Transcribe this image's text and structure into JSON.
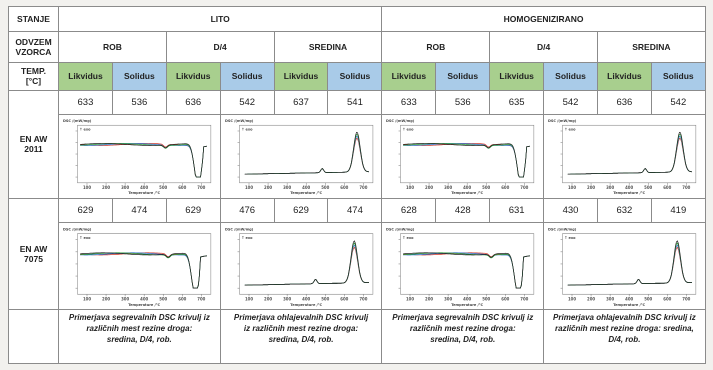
{
  "header": {
    "stanje_label": "STANJE",
    "lito": "LITO",
    "homog": "HOMOGENIZIRANO",
    "odvzem_label_l1": "ODVZEM",
    "odvzem_label_l2": "VZORCA",
    "rob": "ROB",
    "d4": "D/4",
    "sredina": "SREDINA",
    "temp_label_l1": "TEMP.",
    "temp_label_l2": "[°C]",
    "likvidus": "Likvidus",
    "solidus": "Solidus"
  },
  "colors": {
    "likvidus_bg": "#a8cf8e",
    "solidus_bg": "#a9cbe8"
  },
  "rows": [
    {
      "label_l1": "EN AW",
      "label_l2": "2011",
      "values": [
        "633",
        "536",
        "636",
        "542",
        "637",
        "541",
        "633",
        "536",
        "635",
        "542",
        "636",
        "542"
      ]
    },
    {
      "label_l1": "EN AW",
      "label_l2": "7075",
      "values": [
        "629",
        "474",
        "629",
        "476",
        "629",
        "474",
        "628",
        "428",
        "631",
        "430",
        "632",
        "419"
      ]
    }
  ],
  "plot_text": {
    "ylabel": "DSC /(mW/mg)",
    "unit": "↑ exo",
    "xlabel": "Temperature /°C",
    "ticks": [
      "100",
      "200",
      "300",
      "400",
      "500",
      "600",
      "700"
    ]
  },
  "captions": {
    "lito_seg_l1": "Primerjava segrevalnih DSC krivulj iz",
    "lito_seg_l2": "različnih mest rezine droga:",
    "lito_seg_l3": "sredina, D/4, rob.",
    "lito_ohl_l1": "Primerjava ohlajevalnih DSC krivulj",
    "lito_ohl_l2": "iz različnih mest rezine droga:",
    "lito_ohl_l3": "sredina, D/4, rob.",
    "hom_seg_l1": "Primerjava segrevalnih DSC krivulj iz",
    "hom_seg_l2": "različnih mest rezine droga:",
    "hom_seg_l3": "sredina, D/4, rob.",
    "hom_ohl_l1": "Primerjava ohlajevalnih DSC krivulj iz",
    "hom_ohl_l2": "različnih mest rezine droga: sredina,",
    "hom_ohl_l3": "D/4, rob."
  }
}
